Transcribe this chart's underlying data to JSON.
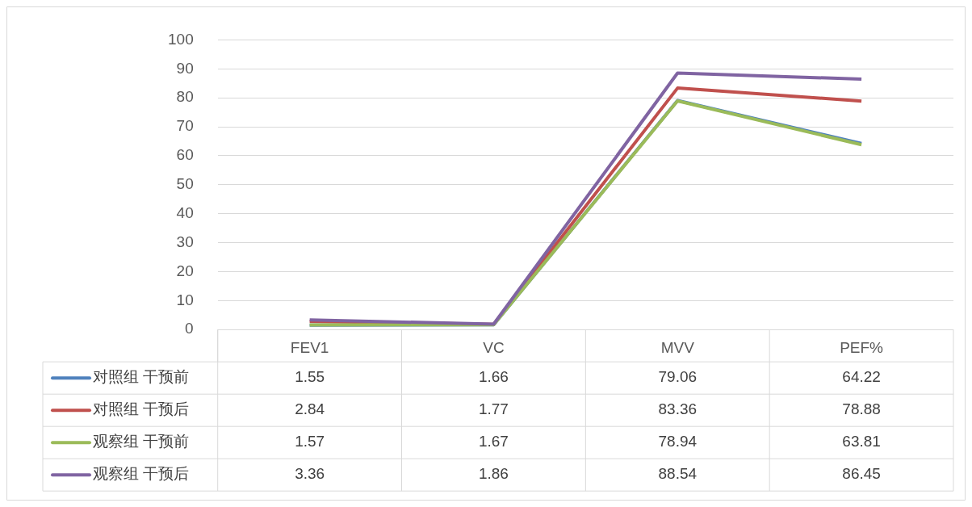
{
  "chart_data": {
    "type": "line",
    "categories": [
      "FEV1",
      "VC",
      "MVV",
      "PEF%"
    ],
    "series": [
      {
        "name": "对照组 干预前",
        "color": "#4f81bd",
        "values": [
          1.55,
          1.66,
          79.06,
          64.22
        ]
      },
      {
        "name": "对照组 干预后",
        "color": "#c0504d",
        "values": [
          2.84,
          1.77,
          83.36,
          78.88
        ]
      },
      {
        "name": "观察组 干预前",
        "color": "#9bbb59",
        "values": [
          1.57,
          1.67,
          78.94,
          63.81
        ]
      },
      {
        "name": "观察组 干预后",
        "color": "#8064a2",
        "values": [
          3.36,
          1.86,
          88.54,
          86.45
        ]
      }
    ],
    "ylim": [
      0,
      100
    ],
    "yticks": [
      0,
      10,
      20,
      30,
      40,
      50,
      60,
      70,
      80,
      90,
      100
    ],
    "grid": "y",
    "legend": "bottom",
    "data_labels": true,
    "marker": "none",
    "line_style": "solid"
  }
}
